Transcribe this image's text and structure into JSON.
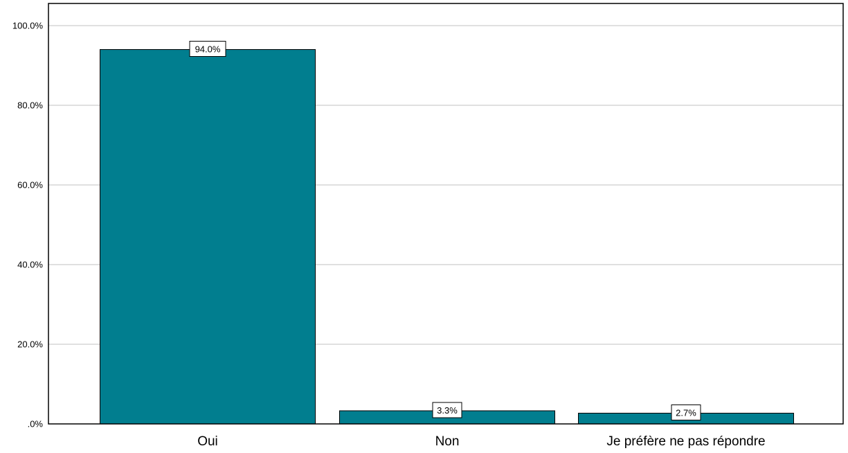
{
  "chart_data": {
    "type": "bar",
    "categories": [
      "Oui",
      "Non",
      "Je préfère ne pas répondre"
    ],
    "values": [
      94.0,
      3.3,
      2.7
    ],
    "data_labels": [
      "94.0%",
      "3.3%",
      "2.7%"
    ],
    "y_ticks": [
      0,
      20,
      40,
      60,
      80,
      100
    ],
    "y_tick_labels": [
      ".0%",
      "20.0%",
      "40.0%",
      "60.0%",
      "80.0%",
      "100.0%"
    ],
    "ylim": [
      0,
      100
    ],
    "grid": true,
    "legend": "none",
    "bar_color": "#017e8f",
    "bar_edge_color": "#000000",
    "gridline_color": "#c0c0c0"
  }
}
